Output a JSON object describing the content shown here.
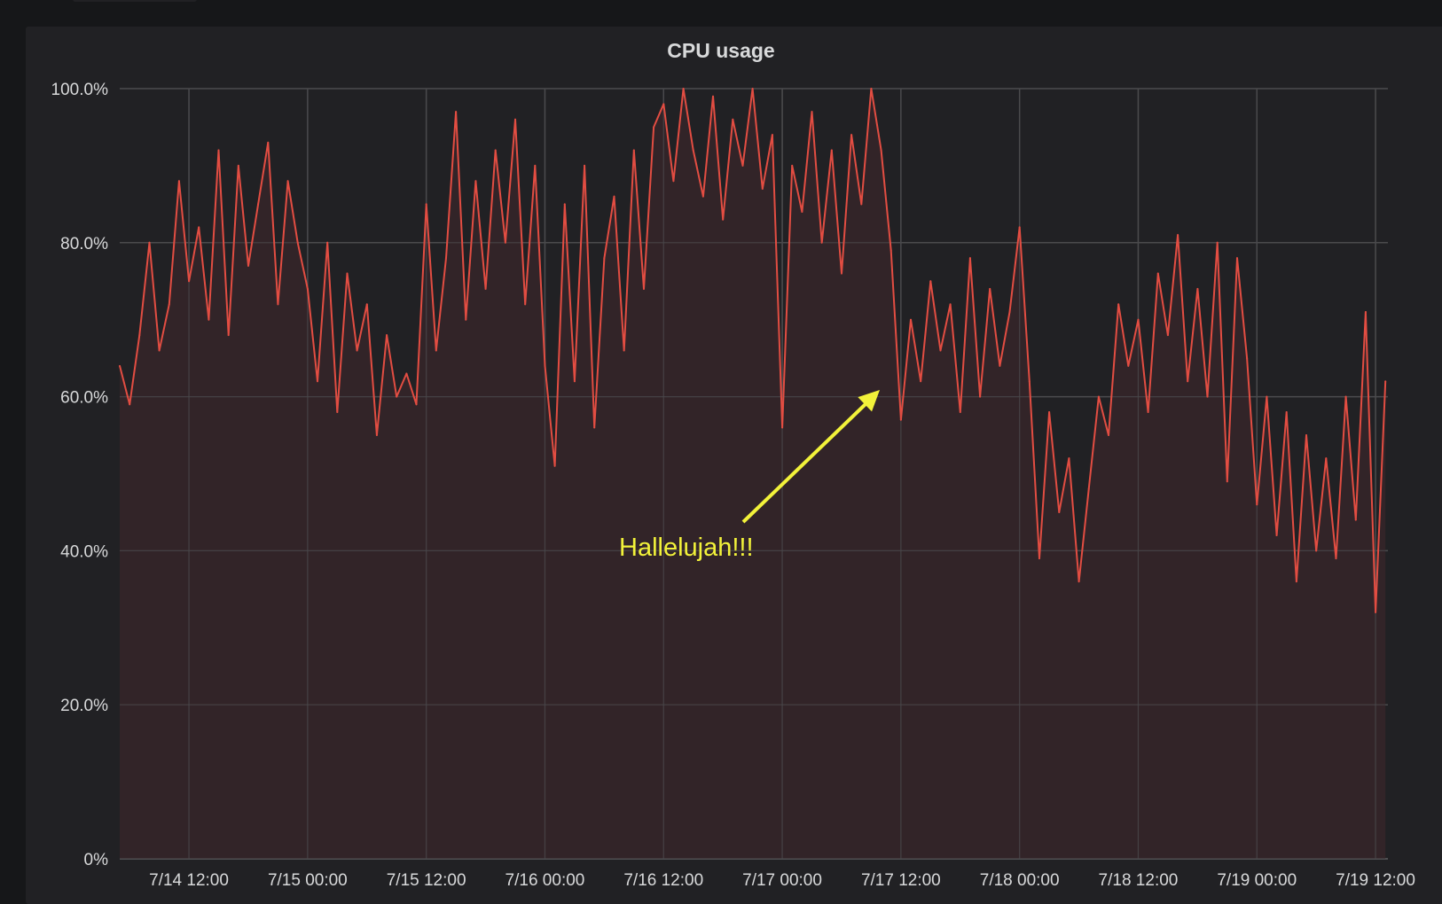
{
  "colors": {
    "series": "#e24d42",
    "fill": "#352529",
    "grid": "#4a4a4d",
    "annotation": "#f2f23a",
    "panel": "#212124",
    "background": "#161719"
  },
  "chart_data": {
    "type": "area",
    "title": "CPU usage",
    "xlabel": "",
    "ylabel": "",
    "ylim": [
      0,
      100
    ],
    "y_ticks": [
      "0%",
      "20.0%",
      "40.0%",
      "60.0%",
      "80.0%",
      "100.0%"
    ],
    "y_tick_values": [
      0,
      20,
      40,
      60,
      80,
      100
    ],
    "x_ticks": [
      "7/14 12:00",
      "7/15 00:00",
      "7/15 12:00",
      "7/16 00:00",
      "7/16 12:00",
      "7/17 00:00",
      "7/17 12:00",
      "7/18 00:00",
      "7/18 12:00",
      "7/19 00:00",
      "7/19 12:00"
    ],
    "xlim": [
      "7/14 05:00",
      "7/19 13:15"
    ],
    "grid": true,
    "legend": "none",
    "series": [
      {
        "x": [
          "7/14 05:00",
          "7/14 06:00",
          "7/14 07:00",
          "7/14 08:00",
          "7/14 09:00",
          "7/14 10:00",
          "7/14 11:00",
          "7/14 12:00",
          "7/14 13:00",
          "7/14 14:00",
          "7/14 15:00",
          "7/14 16:00",
          "7/14 17:00",
          "7/14 18:00",
          "7/14 19:00",
          "7/14 20:00",
          "7/14 21:00",
          "7/14 22:00",
          "7/14 23:00",
          "7/15 00:00",
          "7/15 01:00",
          "7/15 02:00",
          "7/15 03:00",
          "7/15 04:00",
          "7/15 05:00",
          "7/15 06:00",
          "7/15 07:00",
          "7/15 08:00",
          "7/15 09:00",
          "7/15 10:00",
          "7/15 11:00",
          "7/15 12:00",
          "7/15 13:00",
          "7/15 14:00",
          "7/15 15:00",
          "7/15 16:00",
          "7/15 17:00",
          "7/15 18:00",
          "7/15 19:00",
          "7/15 20:00",
          "7/15 21:00",
          "7/15 22:00",
          "7/15 23:00",
          "7/16 00:00",
          "7/16 01:00",
          "7/16 02:00",
          "7/16 03:00",
          "7/16 04:00",
          "7/16 05:00",
          "7/16 06:00",
          "7/16 07:00",
          "7/16 08:00",
          "7/16 09:00",
          "7/16 10:00",
          "7/16 11:00",
          "7/16 12:00",
          "7/16 13:00",
          "7/16 14:00",
          "7/16 15:00",
          "7/16 16:00",
          "7/16 17:00",
          "7/16 18:00",
          "7/16 19:00",
          "7/16 20:00",
          "7/16 21:00",
          "7/16 22:00",
          "7/16 23:00",
          "7/17 00:00",
          "7/17 01:00",
          "7/17 02:00",
          "7/17 03:00",
          "7/17 04:00",
          "7/17 05:00",
          "7/17 06:00",
          "7/17 07:00",
          "7/17 08:00",
          "7/17 09:00",
          "7/17 10:00",
          "7/17 11:00",
          "7/17 12:00",
          "7/17 13:00",
          "7/17 14:00",
          "7/17 15:00",
          "7/17 16:00",
          "7/17 17:00",
          "7/17 18:00",
          "7/17 19:00",
          "7/17 20:00",
          "7/17 21:00",
          "7/17 22:00",
          "7/17 23:00",
          "7/18 00:00",
          "7/18 01:00",
          "7/18 02:00",
          "7/18 03:00",
          "7/18 04:00",
          "7/18 05:00",
          "7/18 06:00",
          "7/18 07:00",
          "7/18 08:00",
          "7/18 09:00",
          "7/18 10:00",
          "7/18 11:00",
          "7/18 12:00",
          "7/18 13:00",
          "7/18 14:00",
          "7/18 15:00",
          "7/18 16:00",
          "7/18 17:00",
          "7/18 18:00",
          "7/18 19:00",
          "7/18 20:00",
          "7/18 21:00",
          "7/18 22:00",
          "7/18 23:00",
          "7/19 00:00",
          "7/19 01:00",
          "7/19 02:00",
          "7/19 03:00",
          "7/19 04:00",
          "7/19 05:00",
          "7/19 06:00",
          "7/19 07:00",
          "7/19 08:00",
          "7/19 09:00",
          "7/19 10:00",
          "7/19 11:00",
          "7/19 12:00",
          "7/19 13:00"
        ],
        "values": [
          64,
          59,
          68,
          80,
          66,
          72,
          88,
          75,
          82,
          70,
          92,
          68,
          90,
          77,
          85,
          93,
          72,
          88,
          80,
          74,
          62,
          80,
          58,
          76,
          66,
          72,
          55,
          68,
          60,
          63,
          59,
          85,
          66,
          78,
          97,
          70,
          88,
          74,
          92,
          80,
          96,
          72,
          90,
          64,
          51,
          85,
          62,
          90,
          56,
          78,
          86,
          66,
          92,
          74,
          95,
          98,
          88,
          100,
          92,
          86,
          99,
          83,
          96,
          90,
          100,
          87,
          94,
          56,
          90,
          84,
          97,
          80,
          92,
          76,
          94,
          85,
          100,
          92,
          79,
          57,
          70,
          62,
          75,
          66,
          72,
          58,
          78,
          60,
          74,
          64,
          71,
          82,
          62,
          39,
          58,
          45,
          52,
          36,
          48,
          60,
          55,
          72,
          64,
          70,
          58,
          76,
          68,
          81,
          62,
          74,
          60,
          80,
          49,
          78,
          65,
          46,
          60,
          42,
          58,
          36,
          55,
          40,
          52,
          39,
          60,
          44,
          71,
          32,
          62
        ]
      }
    ],
    "annotations": [
      {
        "text": "Hallelujah!!!",
        "points_to": "7/17 11:00",
        "value": 61
      }
    ]
  }
}
